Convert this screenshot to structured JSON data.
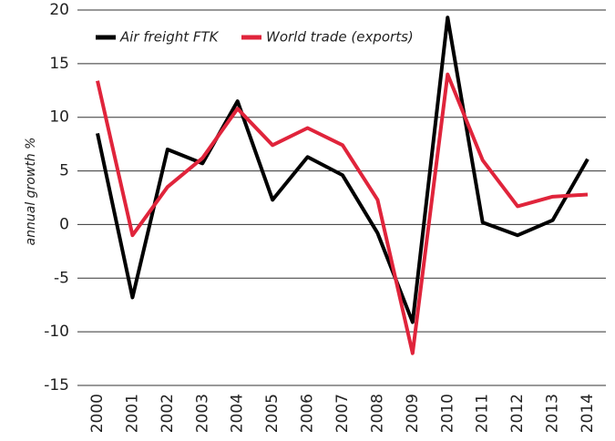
{
  "chart_data": {
    "type": "line",
    "y_label": "annual growth %",
    "categories": [
      "2000",
      "2001",
      "2002",
      "2003",
      "2004",
      "2005",
      "2006",
      "2007",
      "2008",
      "2009",
      "2010",
      "2011",
      "2012",
      "2013",
      "2014"
    ],
    "series": [
      {
        "name": "Air freight FTK",
        "color": "#000000",
        "values": [
          8.5,
          -6.8,
          7.0,
          5.7,
          11.5,
          2.3,
          6.3,
          4.6,
          -0.8,
          -9.1,
          19.3,
          0.2,
          -1.0,
          0.4,
          6.1
        ]
      },
      {
        "name": "World trade (exports)",
        "color": "#e0243b",
        "values": [
          13.4,
          -1.0,
          3.5,
          6.2,
          10.8,
          7.4,
          9.0,
          7.4,
          2.3,
          -12.0,
          14.0,
          6.0,
          1.7,
          2.6,
          2.8
        ]
      }
    ],
    "ylim": [
      -15,
      20
    ],
    "yticks": [
      -15,
      -10,
      -5,
      0,
      5,
      10,
      15,
      20
    ],
    "grid": true,
    "legend": "top"
  }
}
